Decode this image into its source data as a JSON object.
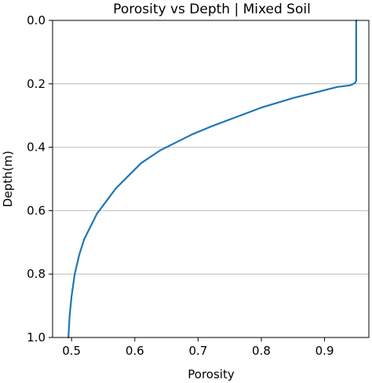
{
  "chart_data": {
    "type": "line",
    "title": "Porosity vs Depth | Mixed Soil",
    "xlabel": "Porosity",
    "ylabel": "Depth(m)",
    "xlim": [
      0.47,
      0.97
    ],
    "ylim": [
      1.0,
      0.0
    ],
    "y_inverted": true,
    "x_ticks": [
      0.5,
      0.6,
      0.7,
      0.8,
      0.9
    ],
    "x_tick_labels": [
      "0.5",
      "0.6",
      "0.7",
      "0.8",
      "0.9"
    ],
    "y_ticks": [
      0.0,
      0.2,
      0.4,
      0.6,
      0.8,
      1.0
    ],
    "y_tick_labels": [
      "0.0",
      "0.2",
      "0.4",
      "0.6",
      "0.8",
      "1.0"
    ],
    "grid": "horizontal",
    "series": [
      {
        "color": "#1f77b4",
        "x": [
          0.95,
          0.95,
          0.95,
          0.948,
          0.94,
          0.92,
          0.89,
          0.85,
          0.8,
          0.76,
          0.72,
          0.69,
          0.66,
          0.64,
          0.61,
          0.59,
          0.57,
          0.555,
          0.54,
          0.53,
          0.52,
          0.512,
          0.505,
          0.5,
          0.497,
          0.495
        ],
        "y": [
          0.0,
          0.1,
          0.19,
          0.198,
          0.205,
          0.21,
          0.225,
          0.245,
          0.275,
          0.305,
          0.335,
          0.36,
          0.39,
          0.41,
          0.45,
          0.49,
          0.53,
          0.57,
          0.61,
          0.65,
          0.69,
          0.74,
          0.8,
          0.87,
          0.93,
          1.0
        ]
      }
    ]
  }
}
